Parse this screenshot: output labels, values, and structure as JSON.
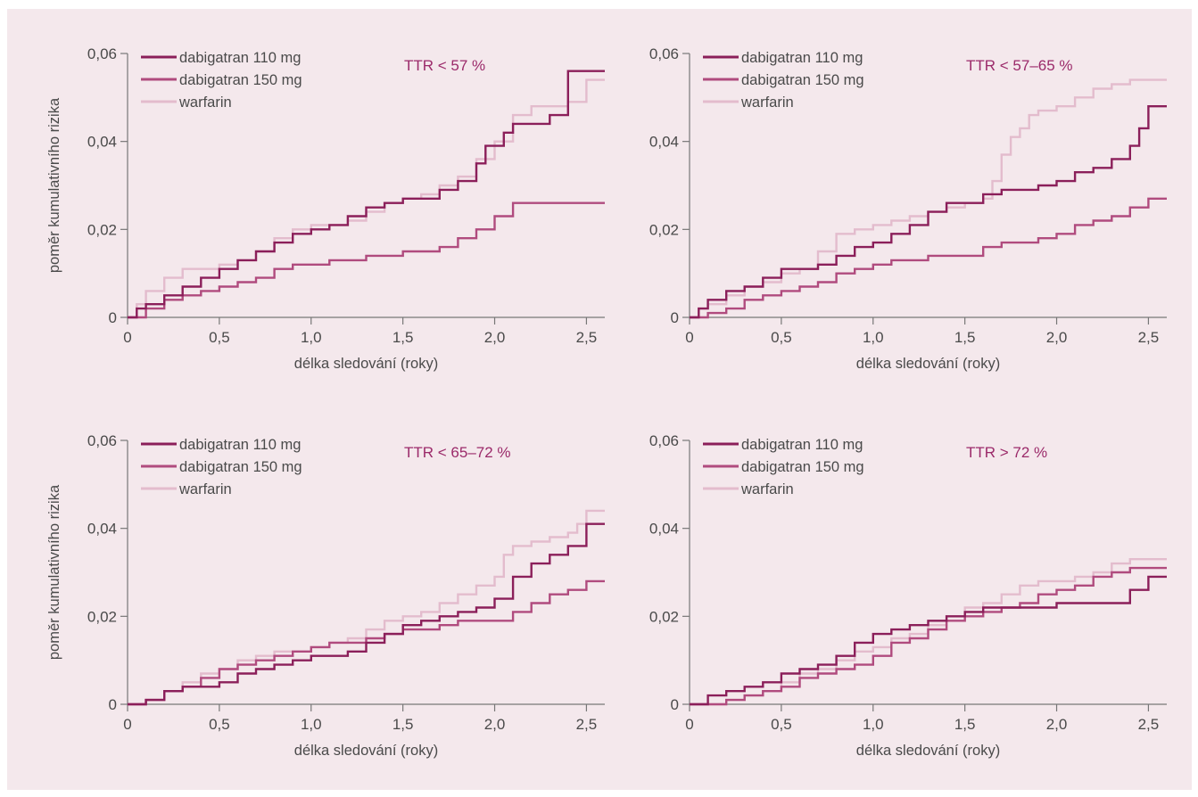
{
  "chart_data": [
    {
      "type": "line",
      "title": "TTR < 57 %",
      "xlabel": "délka sledování (roky)",
      "ylabel": "poměr kumulativního rizika",
      "xlim": [
        0,
        2.6
      ],
      "ylim": [
        0,
        0.06
      ],
      "xticks": [
        "0",
        "0,5",
        "1,0",
        "1,5",
        "2,0",
        "2,5"
      ],
      "yticks": [
        "0",
        "0,02",
        "0,04",
        "0,06"
      ],
      "show_ylabel": true,
      "legend_position": "top-left",
      "series": [
        {
          "name": "dabigatran 110 mg",
          "color": "#8b1f5a",
          "x": [
            0,
            0.05,
            0.1,
            0.2,
            0.3,
            0.4,
            0.5,
            0.6,
            0.7,
            0.8,
            0.9,
            1.0,
            1.1,
            1.2,
            1.3,
            1.4,
            1.5,
            1.6,
            1.7,
            1.8,
            1.9,
            1.95,
            2.05,
            2.1,
            2.3,
            2.4,
            2.6
          ],
          "y": [
            0,
            0.002,
            0.003,
            0.005,
            0.007,
            0.009,
            0.011,
            0.013,
            0.015,
            0.017,
            0.019,
            0.02,
            0.021,
            0.023,
            0.025,
            0.026,
            0.027,
            0.027,
            0.029,
            0.031,
            0.035,
            0.039,
            0.042,
            0.044,
            0.046,
            0.056,
            0.056
          ]
        },
        {
          "name": "dabigatran 150 mg",
          "color": "#b04b7e",
          "x": [
            0,
            0.1,
            0.2,
            0.3,
            0.4,
            0.5,
            0.6,
            0.7,
            0.8,
            0.9,
            1.0,
            1.1,
            1.2,
            1.3,
            1.4,
            1.5,
            1.6,
            1.7,
            1.8,
            1.9,
            2.0,
            2.1,
            2.6
          ],
          "y": [
            0,
            0.002,
            0.004,
            0.005,
            0.006,
            0.007,
            0.008,
            0.009,
            0.011,
            0.012,
            0.012,
            0.013,
            0.013,
            0.014,
            0.014,
            0.015,
            0.015,
            0.016,
            0.018,
            0.02,
            0.023,
            0.026,
            0.026
          ]
        },
        {
          "name": "warfarin",
          "color": "#e3bccd",
          "x": [
            0,
            0.05,
            0.1,
            0.2,
            0.3,
            0.4,
            0.5,
            0.6,
            0.7,
            0.8,
            0.9,
            1.0,
            1.1,
            1.2,
            1.3,
            1.4,
            1.5,
            1.6,
            1.7,
            1.8,
            1.9,
            2.0,
            2.1,
            2.2,
            2.3,
            2.4,
            2.5,
            2.6
          ],
          "y": [
            0,
            0.003,
            0.006,
            0.009,
            0.011,
            0.011,
            0.012,
            0.013,
            0.015,
            0.018,
            0.02,
            0.021,
            0.021,
            0.022,
            0.024,
            0.026,
            0.027,
            0.028,
            0.03,
            0.032,
            0.036,
            0.04,
            0.046,
            0.048,
            0.048,
            0.049,
            0.054,
            0.054
          ]
        }
      ]
    },
    {
      "type": "line",
      "title": "TTR < 57–65 %",
      "xlabel": "délka sledování (roky)",
      "ylabel": "",
      "xlim": [
        0,
        2.6
      ],
      "ylim": [
        0,
        0.06
      ],
      "xticks": [
        "0",
        "0,5",
        "1,0",
        "1,5",
        "2,0",
        "2,5"
      ],
      "yticks": [
        "0",
        "0,02",
        "0,04",
        "0,06"
      ],
      "show_ylabel": false,
      "legend_position": "top-left",
      "series": [
        {
          "name": "dabigatran 110 mg",
          "color": "#8b1f5a",
          "x": [
            0,
            0.05,
            0.1,
            0.2,
            0.3,
            0.4,
            0.5,
            0.6,
            0.7,
            0.8,
            0.9,
            1.0,
            1.1,
            1.2,
            1.3,
            1.4,
            1.5,
            1.6,
            1.7,
            1.8,
            1.9,
            2.0,
            2.1,
            2.2,
            2.3,
            2.4,
            2.45,
            2.5,
            2.6
          ],
          "y": [
            0,
            0.002,
            0.004,
            0.006,
            0.007,
            0.009,
            0.011,
            0.011,
            0.012,
            0.014,
            0.016,
            0.017,
            0.019,
            0.021,
            0.024,
            0.026,
            0.026,
            0.028,
            0.029,
            0.029,
            0.03,
            0.031,
            0.033,
            0.034,
            0.036,
            0.039,
            0.043,
            0.048,
            0.048
          ]
        },
        {
          "name": "dabigatran 150 mg",
          "color": "#b04b7e",
          "x": [
            0,
            0.1,
            0.2,
            0.3,
            0.4,
            0.5,
            0.6,
            0.7,
            0.8,
            0.9,
            1.0,
            1.1,
            1.2,
            1.3,
            1.4,
            1.5,
            1.6,
            1.7,
            1.8,
            1.9,
            2.0,
            2.1,
            2.2,
            2.3,
            2.4,
            2.5,
            2.6
          ],
          "y": [
            0,
            0.001,
            0.002,
            0.004,
            0.005,
            0.006,
            0.007,
            0.008,
            0.01,
            0.011,
            0.012,
            0.013,
            0.013,
            0.014,
            0.014,
            0.014,
            0.016,
            0.017,
            0.017,
            0.018,
            0.019,
            0.021,
            0.022,
            0.023,
            0.025,
            0.027,
            0.027
          ]
        },
        {
          "name": "warfarin",
          "color": "#e3bccd",
          "x": [
            0,
            0.05,
            0.1,
            0.2,
            0.3,
            0.4,
            0.5,
            0.6,
            0.7,
            0.8,
            0.9,
            1.0,
            1.1,
            1.2,
            1.3,
            1.4,
            1.5,
            1.6,
            1.65,
            1.7,
            1.75,
            1.8,
            1.85,
            1.9,
            2.0,
            2.1,
            2.2,
            2.3,
            2.4,
            2.6
          ],
          "y": [
            0,
            0.002,
            0.003,
            0.005,
            0.007,
            0.008,
            0.01,
            0.011,
            0.015,
            0.019,
            0.02,
            0.021,
            0.022,
            0.023,
            0.024,
            0.025,
            0.026,
            0.027,
            0.031,
            0.037,
            0.041,
            0.043,
            0.046,
            0.047,
            0.048,
            0.05,
            0.052,
            0.053,
            0.054,
            0.054
          ]
        }
      ]
    },
    {
      "type": "line",
      "title": "TTR < 65–72 %",
      "xlabel": "délka sledování (roky)",
      "ylabel": "poměr kumulativního rizika",
      "xlim": [
        0,
        2.6
      ],
      "ylim": [
        0,
        0.06
      ],
      "xticks": [
        "0",
        "0,5",
        "1,0",
        "1,5",
        "2,0",
        "2,5"
      ],
      "yticks": [
        "0",
        "0,02",
        "0,04",
        "0,06"
      ],
      "show_ylabel": true,
      "legend_position": "top-left",
      "series": [
        {
          "name": "dabigatran 110 mg",
          "color": "#8b1f5a",
          "x": [
            0,
            0.1,
            0.2,
            0.3,
            0.4,
            0.5,
            0.6,
            0.7,
            0.8,
            0.9,
            1.0,
            1.1,
            1.2,
            1.3,
            1.4,
            1.5,
            1.6,
            1.7,
            1.8,
            1.9,
            2.0,
            2.1,
            2.2,
            2.3,
            2.4,
            2.5,
            2.6
          ],
          "y": [
            0,
            0.001,
            0.003,
            0.004,
            0.004,
            0.005,
            0.007,
            0.008,
            0.009,
            0.01,
            0.011,
            0.011,
            0.012,
            0.014,
            0.016,
            0.018,
            0.019,
            0.02,
            0.021,
            0.022,
            0.024,
            0.029,
            0.032,
            0.034,
            0.036,
            0.041,
            0.041
          ]
        },
        {
          "name": "dabigatran 150 mg",
          "color": "#b04b7e",
          "x": [
            0,
            0.1,
            0.2,
            0.3,
            0.4,
            0.5,
            0.6,
            0.7,
            0.8,
            0.9,
            1.0,
            1.1,
            1.2,
            1.3,
            1.4,
            1.5,
            1.6,
            1.7,
            1.8,
            1.9,
            2.0,
            2.1,
            2.2,
            2.3,
            2.4,
            2.5,
            2.6
          ],
          "y": [
            0,
            0.001,
            0.003,
            0.004,
            0.006,
            0.008,
            0.009,
            0.01,
            0.011,
            0.012,
            0.013,
            0.014,
            0.014,
            0.015,
            0.016,
            0.017,
            0.017,
            0.018,
            0.019,
            0.019,
            0.019,
            0.021,
            0.023,
            0.025,
            0.026,
            0.028,
            0.028
          ]
        },
        {
          "name": "warfarin",
          "color": "#e3bccd",
          "x": [
            0,
            0.1,
            0.2,
            0.3,
            0.4,
            0.5,
            0.6,
            0.7,
            0.8,
            0.9,
            1.0,
            1.1,
            1.2,
            1.3,
            1.4,
            1.5,
            1.6,
            1.7,
            1.8,
            1.9,
            2.0,
            2.05,
            2.1,
            2.2,
            2.3,
            2.4,
            2.45,
            2.5,
            2.6
          ],
          "y": [
            0,
            0.001,
            0.003,
            0.005,
            0.007,
            0.008,
            0.01,
            0.011,
            0.012,
            0.012,
            0.013,
            0.014,
            0.015,
            0.017,
            0.019,
            0.02,
            0.021,
            0.023,
            0.025,
            0.027,
            0.029,
            0.034,
            0.036,
            0.037,
            0.038,
            0.039,
            0.041,
            0.044,
            0.044
          ]
        }
      ]
    },
    {
      "type": "line",
      "title": "TTR > 72 %",
      "xlabel": "délka sledování (roky)",
      "ylabel": "",
      "xlim": [
        0,
        2.6
      ],
      "ylim": [
        0,
        0.06
      ],
      "xticks": [
        "0",
        "0,5",
        "1,0",
        "1,5",
        "2,0",
        "2,5"
      ],
      "yticks": [
        "0",
        "0,02",
        "0,04",
        "0,06"
      ],
      "show_ylabel": false,
      "legend_position": "top-left",
      "series": [
        {
          "name": "dabigatran 110 mg",
          "color": "#8b1f5a",
          "x": [
            0,
            0.1,
            0.2,
            0.3,
            0.4,
            0.5,
            0.6,
            0.7,
            0.8,
            0.9,
            1.0,
            1.1,
            1.2,
            1.3,
            1.4,
            1.5,
            1.6,
            1.7,
            1.8,
            1.9,
            2.0,
            2.1,
            2.2,
            2.3,
            2.4,
            2.5,
            2.6
          ],
          "y": [
            0,
            0.002,
            0.003,
            0.004,
            0.005,
            0.007,
            0.008,
            0.009,
            0.011,
            0.014,
            0.016,
            0.017,
            0.018,
            0.019,
            0.02,
            0.021,
            0.022,
            0.022,
            0.022,
            0.022,
            0.023,
            0.023,
            0.023,
            0.023,
            0.026,
            0.029,
            0.029
          ]
        },
        {
          "name": "dabigatran 150 mg",
          "color": "#b04b7e",
          "x": [
            0,
            0.2,
            0.3,
            0.4,
            0.5,
            0.6,
            0.7,
            0.8,
            0.9,
            1.0,
            1.1,
            1.2,
            1.3,
            1.4,
            1.5,
            1.6,
            1.7,
            1.8,
            1.9,
            2.0,
            2.1,
            2.2,
            2.3,
            2.4,
            2.5,
            2.6
          ],
          "y": [
            0,
            0.001,
            0.002,
            0.003,
            0.004,
            0.006,
            0.007,
            0.008,
            0.009,
            0.011,
            0.014,
            0.015,
            0.017,
            0.019,
            0.02,
            0.021,
            0.022,
            0.023,
            0.025,
            0.026,
            0.027,
            0.029,
            0.03,
            0.031,
            0.031,
            0.031
          ]
        },
        {
          "name": "warfarin",
          "color": "#e3bccd",
          "x": [
            0,
            0.2,
            0.3,
            0.4,
            0.5,
            0.6,
            0.7,
            0.8,
            0.9,
            1.0,
            1.1,
            1.2,
            1.3,
            1.4,
            1.5,
            1.6,
            1.7,
            1.8,
            1.9,
            2.0,
            2.1,
            2.2,
            2.3,
            2.4,
            2.6
          ],
          "y": [
            0,
            0.001,
            0.002,
            0.003,
            0.005,
            0.007,
            0.008,
            0.01,
            0.012,
            0.013,
            0.015,
            0.016,
            0.018,
            0.02,
            0.022,
            0.023,
            0.025,
            0.027,
            0.028,
            0.028,
            0.029,
            0.03,
            0.032,
            0.033,
            0.033
          ]
        }
      ]
    }
  ]
}
